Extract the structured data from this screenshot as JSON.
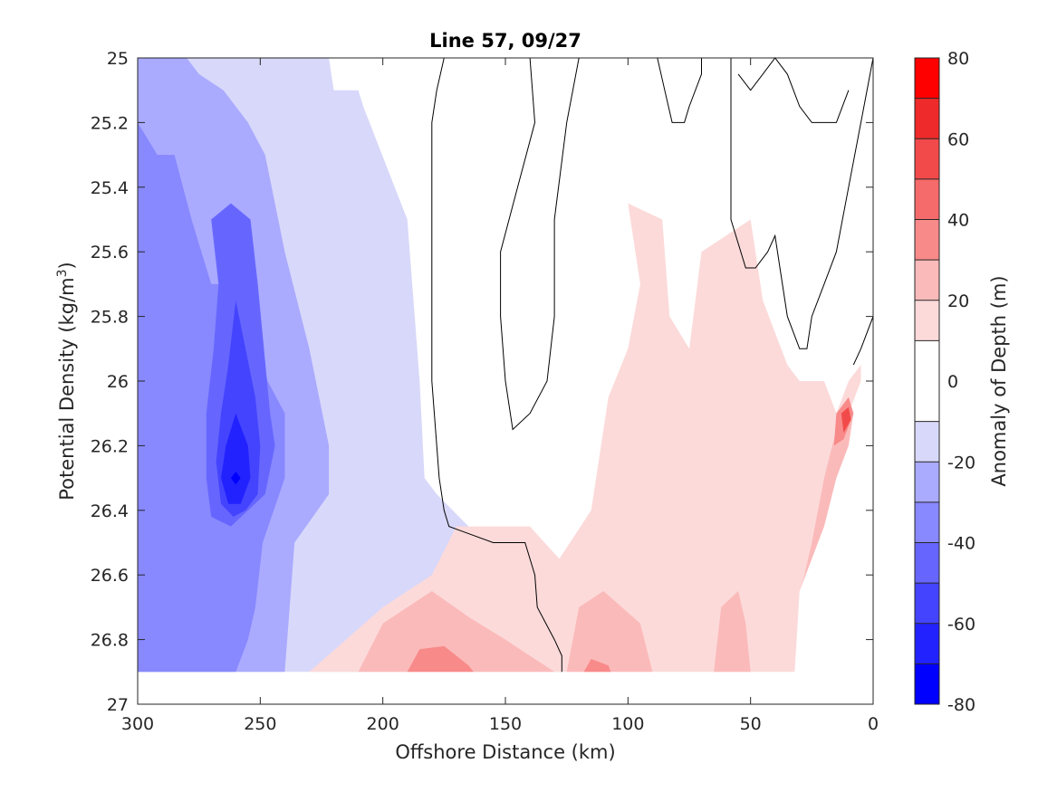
{
  "chart_data": {
    "type": "heatmap",
    "subtype": "filled-contour",
    "title": "Line 57, 09/27",
    "xlabel": "Offshore Distance (km)",
    "ylabel_main": "Potential Density (kg/m",
    "ylabel_sup": "3",
    "ylabel_end": ")",
    "xlim": [
      300,
      0
    ],
    "ylim": [
      27,
      25
    ],
    "y_reversed": true,
    "x_reversed": true,
    "xticks": [
      300,
      250,
      200,
      150,
      100,
      50,
      0
    ],
    "xtick_labels": [
      "300",
      "250",
      "200",
      "150",
      "100",
      "50",
      "0"
    ],
    "yticks": [
      25,
      25.2,
      25.4,
      25.6,
      25.8,
      26,
      26.2,
      26.4,
      26.6,
      26.8,
      27
    ],
    "ytick_labels": [
      "25",
      "25.2",
      "25.4",
      "25.6",
      "25.8",
      "26",
      "26.2",
      "26.4",
      "26.6",
      "26.8",
      "27"
    ],
    "grid": false,
    "colorbar": {
      "label": "Anomaly of Depth (m)",
      "ticks": [
        -80,
        -60,
        -40,
        -20,
        0,
        20,
        40,
        60,
        80
      ],
      "tick_labels": [
        "-80",
        "-60",
        "-40",
        "-20",
        "0",
        "20",
        "40",
        "60",
        "80"
      ],
      "levels": [
        -80,
        -70,
        -60,
        -50,
        -40,
        -30,
        -20,
        -10,
        10,
        20,
        30,
        40,
        50,
        60,
        70,
        80
      ],
      "colors": [
        "#0000ff",
        "#2222ff",
        "#4444ff",
        "#6666ff",
        "#8888ff",
        "#aaaaff",
        "#d8d8fa",
        "#ffffff",
        "#fcdada",
        "#fbbaba",
        "#f88a8a",
        "#f56a6a",
        "#f24a4a",
        "#ee2a2a",
        "#ff0000"
      ]
    },
    "contour_regions": [
      {
        "level": -10,
        "color": "#d8d8fa",
        "points": [
          [
            300,
            25
          ],
          [
            222,
            25
          ],
          [
            220,
            25.1
          ],
          [
            210,
            25.1
          ],
          [
            208,
            25.15
          ],
          [
            190,
            25.5
          ],
          [
            185,
            26
          ],
          [
            183,
            26.3
          ],
          [
            178,
            26.35
          ],
          [
            165,
            26.45
          ],
          [
            145,
            26.55
          ],
          [
            127,
            26.9
          ],
          [
            300,
            26.9
          ]
        ]
      },
      {
        "level": -20,
        "color": "#aaaaff",
        "points": [
          [
            300,
            25
          ],
          [
            280,
            25
          ],
          [
            275,
            25.05
          ],
          [
            265,
            25.1
          ],
          [
            255,
            25.2
          ],
          [
            248,
            25.3
          ],
          [
            240,
            25.6
          ],
          [
            230,
            25.9
          ],
          [
            222,
            26.2
          ],
          [
            222,
            26.35
          ],
          [
            236,
            26.5
          ],
          [
            240,
            26.9
          ],
          [
            300,
            26.9
          ]
        ]
      },
      {
        "level": -30,
        "color": "#8888ff",
        "points": [
          [
            300,
            25.2
          ],
          [
            292,
            25.3
          ],
          [
            285,
            25.3
          ],
          [
            278,
            25.5
          ],
          [
            270,
            25.7
          ],
          [
            262,
            25.7
          ],
          [
            254,
            25.8
          ],
          [
            247,
            26
          ],
          [
            240,
            26.1
          ],
          [
            240,
            26.3
          ],
          [
            249,
            26.5
          ],
          [
            252,
            26.7
          ],
          [
            255,
            26.8
          ],
          [
            260,
            26.9
          ],
          [
            300,
            26.9
          ]
        ]
      },
      {
        "level": -40,
        "color": "#6666ff",
        "points": [
          [
            270,
            25.5
          ],
          [
            262,
            25.45
          ],
          [
            254,
            25.5
          ],
          [
            251,
            25.7
          ],
          [
            246,
            26.1
          ],
          [
            244,
            26.2
          ],
          [
            248,
            26.35
          ],
          [
            255,
            26.4
          ],
          [
            262,
            26.45
          ],
          [
            270,
            26.42
          ],
          [
            272,
            26.3
          ],
          [
            272,
            26.1
          ],
          [
            269,
            25.9
          ],
          [
            267,
            25.7
          ]
        ]
      },
      {
        "level": -50,
        "color": "#4444ff",
        "points": [
          [
            260,
            25.75
          ],
          [
            256,
            25.9
          ],
          [
            252,
            26.05
          ],
          [
            250,
            26.2
          ],
          [
            251,
            26.35
          ],
          [
            256,
            26.4
          ],
          [
            261,
            26.42
          ],
          [
            266,
            26.38
          ],
          [
            268,
            26.25
          ],
          [
            266,
            26.1
          ],
          [
            263,
            25.95
          ]
        ]
      },
      {
        "level": -60,
        "color": "#2222ff",
        "points": [
          [
            260,
            26.1
          ],
          [
            255,
            26.2
          ],
          [
            254,
            26.3
          ],
          [
            258,
            26.38
          ],
          [
            263,
            26.38
          ],
          [
            266,
            26.3
          ],
          [
            264,
            26.2
          ]
        ]
      },
      {
        "level": -70,
        "color": "#0000ff",
        "points": [
          [
            260,
            26.28
          ],
          [
            258,
            26.3
          ],
          [
            260,
            26.32
          ],
          [
            262,
            26.3
          ]
        ]
      },
      {
        "level": 10,
        "color": "#fcdada",
        "points": [
          [
            100,
            25.45
          ],
          [
            86,
            25.5
          ],
          [
            83,
            25.8
          ],
          [
            75,
            25.9
          ],
          [
            70,
            25.6
          ],
          [
            50,
            25.5
          ],
          [
            45,
            25.75
          ],
          [
            40,
            25.85
          ],
          [
            35,
            25.95
          ],
          [
            30,
            26.0
          ],
          [
            20,
            26.0
          ],
          [
            15,
            26.1
          ],
          [
            10,
            26.0
          ],
          [
            5,
            25.95
          ],
          [
            5,
            26.0
          ],
          [
            15,
            26.2
          ],
          [
            20,
            26.4
          ],
          [
            30,
            26.65
          ],
          [
            32,
            26.9
          ],
          [
            230,
            26.9
          ],
          [
            200,
            26.7
          ],
          [
            180,
            26.6
          ],
          [
            170,
            26.45
          ],
          [
            140,
            26.45
          ],
          [
            128,
            26.55
          ],
          [
            115,
            26.4
          ],
          [
            108,
            26.05
          ],
          [
            100,
            25.9
          ],
          [
            95,
            25.7
          ]
        ]
      },
      {
        "level": 20,
        "color": "#fbbaba",
        "points": [
          [
            210,
            26.9
          ],
          [
            200,
            26.75
          ],
          [
            180,
            26.65
          ],
          [
            165,
            26.73
          ],
          [
            150,
            26.8
          ],
          [
            140,
            26.85
          ],
          [
            130,
            26.9
          ]
        ]
      },
      {
        "level": 20,
        "color": "#fbbaba",
        "points": [
          [
            125,
            26.9
          ],
          [
            120,
            26.7
          ],
          [
            110,
            26.65
          ],
          [
            95,
            26.75
          ],
          [
            90,
            26.9
          ]
        ]
      },
      {
        "level": 20,
        "color": "#fbbaba",
        "points": [
          [
            65,
            26.9
          ],
          [
            62,
            26.7
          ],
          [
            55,
            26.65
          ],
          [
            52,
            26.75
          ],
          [
            50,
            26.9
          ]
        ]
      },
      {
        "level": 20,
        "color": "#fbbaba",
        "points": [
          [
            25,
            26.5
          ],
          [
            20,
            26.3
          ],
          [
            15,
            26.15
          ],
          [
            10,
            26.05
          ],
          [
            8,
            26.1
          ],
          [
            10,
            26.2
          ],
          [
            15,
            26.3
          ],
          [
            20,
            26.45
          ],
          [
            30,
            26.65
          ],
          [
            28,
            26.6
          ]
        ]
      },
      {
        "level": 30,
        "color": "#f88a8a",
        "points": [
          [
            190,
            26.9
          ],
          [
            185,
            26.83
          ],
          [
            175,
            26.82
          ],
          [
            165,
            26.88
          ],
          [
            163,
            26.9
          ]
        ]
      },
      {
        "level": 30,
        "color": "#f88a8a",
        "points": [
          [
            118,
            26.9
          ],
          [
            115,
            26.86
          ],
          [
            108,
            26.88
          ],
          [
            107,
            26.9
          ]
        ]
      },
      {
        "level": 30,
        "color": "#f88a8a",
        "points": [
          [
            15,
            26.1
          ],
          [
            10,
            26.05
          ],
          [
            8,
            26.1
          ],
          [
            12,
            26.18
          ],
          [
            16,
            26.2
          ]
        ]
      },
      {
        "level": 40,
        "color": "#f24a4a",
        "points": [
          [
            13,
            26.1
          ],
          [
            10,
            26.08
          ],
          [
            9,
            26.12
          ],
          [
            12,
            26.16
          ]
        ]
      }
    ],
    "zero_contours": [
      {
        "level": 0,
        "points": [
          [
            175,
            25
          ],
          [
            178,
            25.1
          ],
          [
            180,
            25.2
          ],
          [
            180,
            25.5
          ],
          [
            180,
            26
          ],
          [
            177,
            26.3
          ],
          [
            175,
            26.4
          ],
          [
            173,
            26.45
          ],
          [
            155,
            26.5
          ],
          [
            142,
            26.5
          ],
          [
            140,
            26.55
          ],
          [
            138,
            26.6
          ],
          [
            137,
            26.7
          ],
          [
            130,
            26.8
          ],
          [
            127,
            26.85
          ],
          [
            127,
            26.9
          ]
        ]
      },
      {
        "level": 0,
        "points": [
          [
            140,
            25
          ],
          [
            138,
            25.2
          ],
          [
            145,
            25.4
          ],
          [
            152,
            25.6
          ],
          [
            152,
            25.8
          ],
          [
            150,
            26
          ],
          [
            147,
            26.15
          ],
          [
            140,
            26.1
          ],
          [
            133,
            26
          ],
          [
            130,
            25.8
          ],
          [
            130,
            25.5
          ],
          [
            125,
            25.2
          ],
          [
            120,
            25
          ]
        ]
      },
      {
        "level": 0,
        "points": [
          [
            88,
            25
          ],
          [
            85,
            25.1
          ],
          [
            82,
            25.2
          ],
          [
            77,
            25.2
          ],
          [
            75,
            25.15
          ],
          [
            70,
            25.05
          ],
          [
            70,
            25
          ]
        ]
      },
      {
        "level": 0,
        "points": [
          [
            58,
            25
          ],
          [
            58,
            25.2
          ],
          [
            58,
            25.5
          ],
          [
            52,
            25.65
          ],
          [
            48,
            25.65
          ],
          [
            43,
            25.6
          ],
          [
            40,
            25.55
          ],
          [
            38,
            25.65
          ],
          [
            35,
            25.8
          ],
          [
            30,
            25.9
          ],
          [
            27,
            25.9
          ],
          [
            25,
            25.8
          ],
          [
            20,
            25.7
          ],
          [
            15,
            25.6
          ],
          [
            10,
            25.4
          ],
          [
            5,
            25.2
          ],
          [
            0,
            25
          ]
        ]
      },
      {
        "level": 0,
        "points": [
          [
            10,
            25.1
          ],
          [
            15,
            25.2
          ],
          [
            20,
            25.2
          ],
          [
            25,
            25.2
          ],
          [
            30,
            25.15
          ],
          [
            35,
            25.05
          ],
          [
            40,
            25.0
          ],
          [
            45,
            25.05
          ],
          [
            50,
            25.1
          ],
          [
            55,
            25.05
          ]
        ]
      },
      {
        "level": 0,
        "points": [
          [
            0,
            25.5
          ],
          [
            0,
            25.8
          ],
          [
            5,
            25.9
          ],
          [
            8,
            25.95
          ]
        ]
      }
    ]
  }
}
